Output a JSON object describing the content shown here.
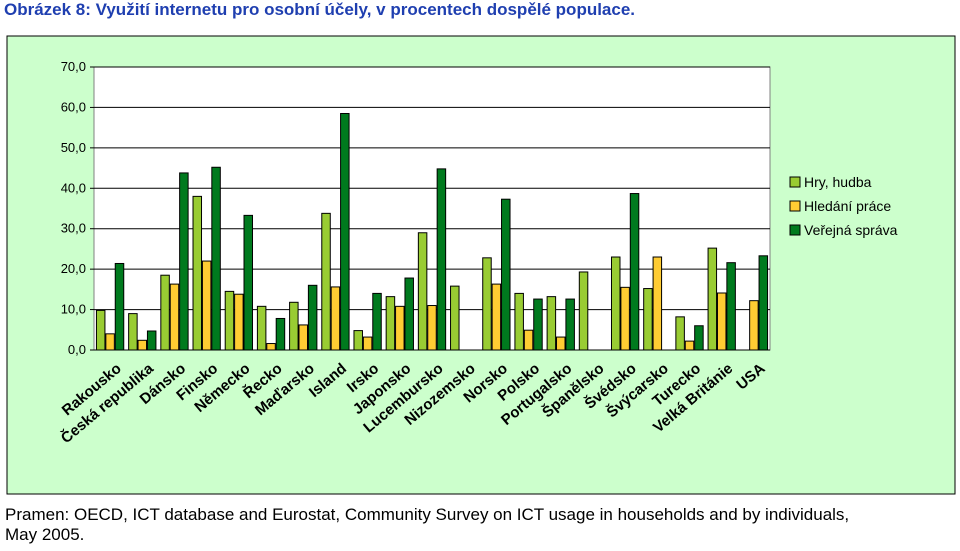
{
  "title": "Obrázek 8: Využití internetu pro osobní účely, v procentech dospělé populace.",
  "source_lines": [
    "Pramen: OECD, ICT database and Eurostat, Community Survey on ICT usage in households and by individuals,",
    "May 2005."
  ],
  "colors": {
    "plot_bg": "#ffffff",
    "chart_bg": "#ccffcc",
    "grid": "#000000"
  },
  "chart_data": {
    "type": "bar",
    "title": "",
    "xlabel": "",
    "ylabel": "",
    "ylim": [
      0,
      70
    ],
    "yticks": [
      0,
      10,
      20,
      30,
      40,
      50,
      60,
      70
    ],
    "ytick_labels": [
      "0,0",
      "10,0",
      "20,0",
      "30,0",
      "40,0",
      "50,0",
      "60,0",
      "70,0"
    ],
    "legend_position": "right",
    "categories": [
      "Rakousko",
      "Česká republika",
      "Dánsko",
      "Finsko",
      "Německo",
      "Řecko",
      "Maďarsko",
      "Island",
      "Irsko",
      "Japonsko",
      "Lucembursko",
      "Nizozemsko",
      "Norsko",
      "Polsko",
      "Portugalsko",
      "Španělsko",
      "Švédsko",
      "Švýcarsko",
      "Turecko",
      "Velká Británie",
      "USA"
    ],
    "series": [
      {
        "name": "Hry, hudba",
        "color": "#99cc33",
        "values": [
          9.8,
          9.0,
          18.5,
          38.0,
          14.5,
          10.8,
          11.8,
          33.8,
          4.8,
          13.2,
          29.0,
          15.8,
          22.8,
          14.0,
          13.2,
          19.3,
          23.0,
          15.2,
          8.2,
          25.2,
          null
        ]
      },
      {
        "name": "Hledání práce",
        "color": "#ffcc33",
        "values": [
          4.0,
          2.4,
          16.3,
          22.0,
          13.8,
          1.6,
          6.2,
          15.6,
          3.2,
          10.8,
          11.0,
          null,
          16.3,
          4.9,
          3.2,
          null,
          15.5,
          23.0,
          2.2,
          14.1,
          12.2
        ]
      },
      {
        "name": "Veřejná správa",
        "color": "#007a1e",
        "values": [
          21.4,
          4.7,
          43.8,
          45.2,
          33.3,
          7.8,
          16.0,
          58.5,
          14.0,
          17.8,
          44.8,
          null,
          37.3,
          12.6,
          12.6,
          null,
          38.7,
          null,
          6.0,
          21.6,
          23.3
        ]
      }
    ]
  }
}
